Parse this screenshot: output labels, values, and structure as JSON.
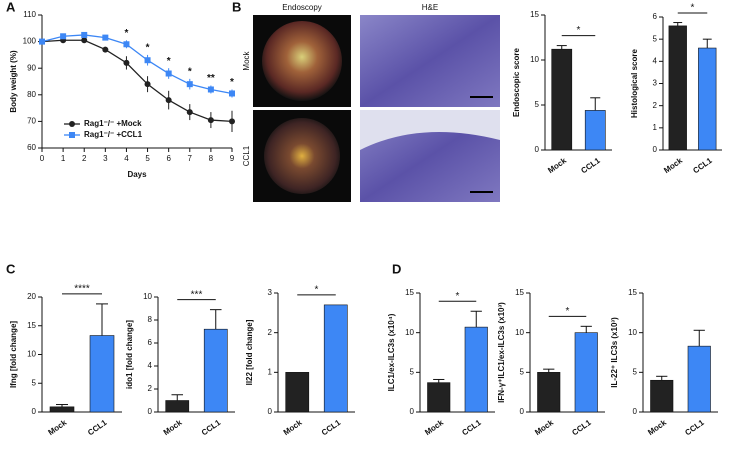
{
  "panels": [
    "A",
    "B",
    "C",
    "D"
  ],
  "images": {
    "columns": [
      "Endoscopy",
      "H&E"
    ],
    "rows": [
      "Mock",
      "CCL1"
    ]
  },
  "chart_data": [
    {
      "type": "line",
      "xlabel": "Days",
      "ylabel": "Body weight (%)",
      "x": [
        0,
        1,
        2,
        3,
        4,
        5,
        6,
        7,
        8,
        9
      ],
      "xlim": [
        0,
        9
      ],
      "xticks": [
        0,
        1,
        2,
        3,
        4,
        5,
        6,
        7,
        8,
        9
      ],
      "ylim": [
        60,
        110
      ],
      "yticks": [
        60,
        70,
        80,
        90,
        100,
        110
      ],
      "legend": "lower-left",
      "series": [
        {
          "name": "Rag1⁻/⁻ +Mock",
          "color": "#222222",
          "marker": "circle",
          "values": [
            100,
            100.5,
            100.5,
            97,
            92,
            84,
            78,
            73.5,
            70.5,
            70
          ],
          "errors": [
            0,
            0.5,
            0.5,
            1,
            2.5,
            3,
            3.5,
            3,
            3,
            4
          ]
        },
        {
          "name": "Rag1⁻/⁻ +CCL1",
          "color": "#3d87f5",
          "marker": "square",
          "values": [
            100,
            102,
            102.5,
            101.5,
            99,
            93,
            88,
            84,
            82,
            80.5
          ],
          "errors": [
            0,
            1,
            1,
            1,
            1.5,
            2,
            2,
            2,
            1.5,
            1.5
          ]
        }
      ],
      "annotations": [
        {
          "x": 4,
          "text": "*"
        },
        {
          "x": 5,
          "text": "*"
        },
        {
          "x": 6,
          "text": "*"
        },
        {
          "x": 7,
          "text": "*"
        },
        {
          "x": 8,
          "text": "**"
        },
        {
          "x": 9,
          "text": "*"
        }
      ]
    },
    {
      "type": "bar",
      "ylabel": "Endoscopic score",
      "categories": [
        "Mock",
        "CCL1"
      ],
      "values": [
        11.2,
        4.4
      ],
      "errors": [
        0.4,
        1.4
      ],
      "colors": [
        "#222222",
        "#3d87f5"
      ],
      "ylim": [
        0,
        15
      ],
      "yticks": [
        0,
        5,
        10,
        15
      ],
      "significance": "*"
    },
    {
      "type": "bar",
      "ylabel": "Histological score",
      "categories": [
        "Mock",
        "CCL1"
      ],
      "values": [
        5.6,
        4.6
      ],
      "errors": [
        0.15,
        0.4
      ],
      "colors": [
        "#222222",
        "#3d87f5"
      ],
      "ylim": [
        0,
        6
      ],
      "yticks": [
        0,
        1,
        2,
        3,
        4,
        5,
        6
      ],
      "significance": "*"
    },
    {
      "type": "bar",
      "ylabel": "Ifng [fold change]",
      "categories": [
        "Mock",
        "CCL1"
      ],
      "values": [
        0.9,
        13.3
      ],
      "errors": [
        0.4,
        5.5
      ],
      "colors": [
        "#222222",
        "#3d87f5"
      ],
      "ylim": [
        0,
        20
      ],
      "yticks": [
        0,
        5,
        10,
        15,
        20
      ],
      "significance": "****"
    },
    {
      "type": "bar",
      "ylabel": "ido1 [fold change]",
      "categories": [
        "Mock",
        "CCL1"
      ],
      "values": [
        1,
        7.2
      ],
      "errors": [
        0.5,
        1.7
      ],
      "colors": [
        "#222222",
        "#3d87f5"
      ],
      "ylim": [
        0,
        10
      ],
      "yticks": [
        0,
        2,
        4,
        6,
        8,
        10
      ],
      "significance": "***"
    },
    {
      "type": "bar",
      "ylabel": "Il22 [fold change]",
      "categories": [
        "Mock",
        "CCL1"
      ],
      "values": [
        1,
        2.7
      ],
      "colors": [
        "#222222",
        "#3d87f5"
      ],
      "ylim": [
        0,
        3
      ],
      "yticks": [
        0,
        1,
        2,
        3
      ],
      "significance": "*"
    },
    {
      "type": "bar",
      "ylabel": "ILC1/ex-ILC3s (x10⁴)",
      "categories": [
        "Mock",
        "CCL1"
      ],
      "values": [
        3.7,
        10.7
      ],
      "errors": [
        0.4,
        2
      ],
      "colors": [
        "#222222",
        "#3d87f5"
      ],
      "ylim": [
        0,
        15
      ],
      "yticks": [
        0,
        5,
        10,
        15
      ],
      "significance": "*"
    },
    {
      "type": "bar",
      "ylabel": "IFN-γ⁺ILC1/ex-ILC3s (x10³)",
      "categories": [
        "Mock",
        "CCL1"
      ],
      "values": [
        5,
        10
      ],
      "errors": [
        0.4,
        0.8
      ],
      "colors": [
        "#222222",
        "#3d87f5"
      ],
      "ylim": [
        0,
        15
      ],
      "yticks": [
        0,
        5,
        10,
        15
      ],
      "significance": "*"
    },
    {
      "type": "bar",
      "ylabel": "IL-22⁺ ILC3s (x10³)",
      "categories": [
        "Mock",
        "CCL1"
      ],
      "values": [
        4,
        8.3
      ],
      "errors": [
        0.5,
        2
      ],
      "colors": [
        "#222222",
        "#3d87f5"
      ],
      "ylim": [
        0,
        15
      ],
      "yticks": [
        0,
        5,
        10,
        15
      ]
    }
  ]
}
